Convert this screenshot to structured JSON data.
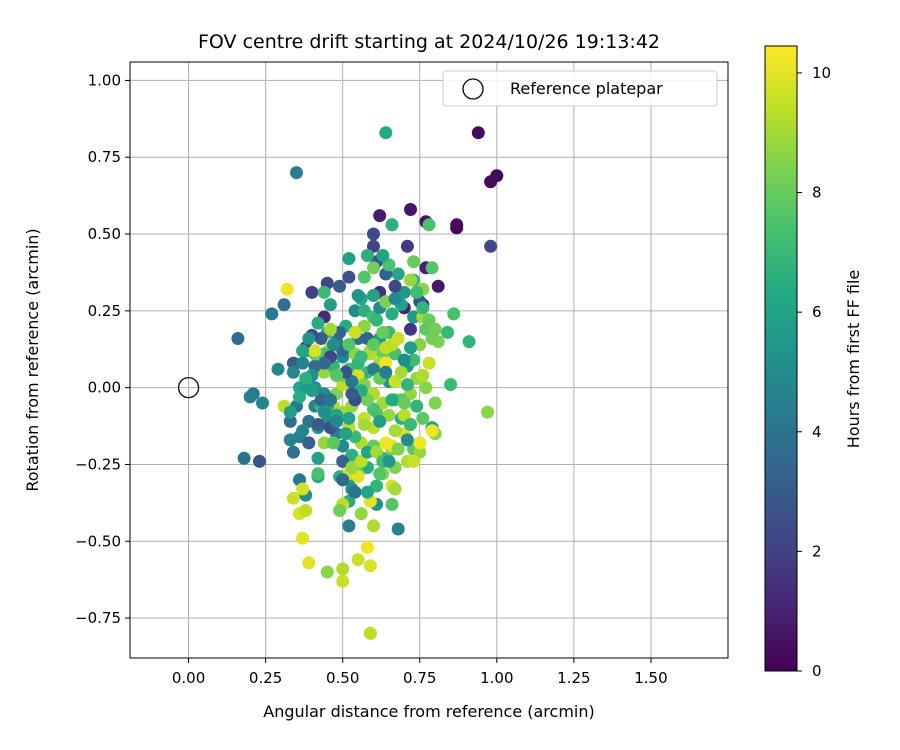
{
  "chart_data": {
    "type": "scatter",
    "title": "FOV centre drift starting at 2024/10/26 19:13:42",
    "xlabel": "Angular distance from reference (arcmin)",
    "ylabel": "Rotation from reference (arcmin)",
    "xlim": [
      -0.19,
      1.75
    ],
    "ylim": [
      -0.88,
      1.06
    ],
    "xticks": [
      0.0,
      0.25,
      0.5,
      0.75,
      1.0,
      1.25,
      1.5
    ],
    "xtick_labels": [
      "0.00",
      "0.25",
      "0.50",
      "0.75",
      "1.00",
      "1.25",
      "1.50"
    ],
    "yticks": [
      -0.75,
      -0.5,
      -0.25,
      0.0,
      0.25,
      0.5,
      0.75,
      1.0
    ],
    "ytick_labels": [
      "−0.75",
      "−0.50",
      "−0.25",
      "0.00",
      "0.25",
      "0.50",
      "0.75",
      "1.00"
    ],
    "grid": true,
    "colormap": "viridis",
    "colorbar": {
      "label": "Hours from first FF file",
      "range": [
        0,
        10.45
      ],
      "ticks": [
        0,
        2,
        4,
        6,
        8,
        10
      ],
      "tick_labels": [
        "0",
        "2",
        "4",
        "6",
        "8",
        "10"
      ]
    },
    "legend": {
      "placement": "top-right",
      "entries": [
        {
          "label": "Reference platepar",
          "marker": "open-circle"
        }
      ]
    },
    "reference_point": {
      "x": 0.0,
      "y": 0.0
    },
    "points": [
      [
        0.94,
        0.83,
        0.3
      ],
      [
        1.0,
        0.69,
        0.2
      ],
      [
        0.98,
        0.67,
        0.3
      ],
      [
        0.87,
        0.52,
        0.4
      ],
      [
        0.87,
        0.53,
        0.3
      ],
      [
        0.77,
        0.54,
        0.5
      ],
      [
        0.72,
        0.58,
        0.6
      ],
      [
        0.62,
        0.56,
        0.8
      ],
      [
        0.81,
        0.33,
        0.7
      ],
      [
        0.77,
        0.39,
        0.9
      ],
      [
        0.98,
        0.46,
        2.2
      ],
      [
        0.71,
        0.46,
        1.8
      ],
      [
        0.6,
        0.5,
        2.4
      ],
      [
        0.6,
        0.46,
        2.0
      ],
      [
        0.61,
        0.41,
        2.6
      ],
      [
        0.45,
        0.34,
        2.2
      ],
      [
        0.4,
        0.31,
        2.0
      ],
      [
        0.44,
        0.23,
        1.2
      ],
      [
        0.62,
        0.31,
        1.4
      ],
      [
        0.7,
        0.26,
        1.0
      ],
      [
        0.72,
        0.19,
        1.6
      ],
      [
        0.76,
        0.27,
        0.9
      ],
      [
        0.64,
        0.83,
        6.3
      ],
      [
        0.35,
        0.7,
        4.4
      ],
      [
        0.31,
        0.27,
        3.8
      ],
      [
        0.27,
        0.24,
        4.2
      ],
      [
        0.16,
        0.16,
        3.7
      ],
      [
        0.21,
        -0.02,
        4.3
      ],
      [
        0.2,
        -0.03,
        4.4
      ],
      [
        0.24,
        -0.05,
        4.6
      ],
      [
        0.18,
        -0.23,
        4.0
      ],
      [
        0.23,
        -0.24,
        2.8
      ],
      [
        0.66,
        0.53,
        6.6
      ],
      [
        0.78,
        0.53,
        7.4
      ],
      [
        0.52,
        0.42,
        5.9
      ],
      [
        0.58,
        0.43,
        6.6
      ],
      [
        0.6,
        0.39,
        8.2
      ],
      [
        0.68,
        0.37,
        6.2
      ],
      [
        0.73,
        0.35,
        7.0
      ],
      [
        0.76,
        0.32,
        8.6
      ],
      [
        0.73,
        0.41,
        8.0
      ],
      [
        0.79,
        0.39,
        7.6
      ],
      [
        0.86,
        0.24,
        7.4
      ],
      [
        0.84,
        0.18,
        7.0
      ],
      [
        0.91,
        0.15,
        6.8
      ],
      [
        0.81,
        0.15,
        8.4
      ],
      [
        0.32,
        0.32,
        10.2
      ],
      [
        0.29,
        0.06,
        4.8
      ],
      [
        0.34,
        0.08,
        3.0
      ],
      [
        0.38,
        0.12,
        5.2
      ],
      [
        0.36,
        0.0,
        6.2
      ],
      [
        0.38,
        0.0,
        5.6
      ],
      [
        0.35,
        -0.06,
        4.2
      ],
      [
        0.33,
        -0.11,
        3.8
      ],
      [
        0.36,
        -0.16,
        4.4
      ],
      [
        0.33,
        -0.17,
        4.6
      ],
      [
        0.34,
        -0.21,
        3.9
      ],
      [
        0.36,
        -0.3,
        4.2
      ],
      [
        0.38,
        -0.35,
        5.0
      ],
      [
        0.42,
        -0.23,
        6.0
      ],
      [
        0.42,
        -0.29,
        6.4
      ],
      [
        0.42,
        -0.13,
        5.5
      ],
      [
        0.41,
        -0.06,
        4.7
      ],
      [
        0.41,
        0.0,
        5.3
      ],
      [
        0.44,
        0.05,
        8.8
      ],
      [
        0.47,
        0.07,
        6.8
      ],
      [
        0.46,
        0.13,
        9.2
      ],
      [
        0.5,
        0.1,
        5.0
      ],
      [
        0.48,
        0.15,
        4.3
      ],
      [
        0.51,
        0.2,
        6.4
      ],
      [
        0.54,
        0.25,
        5.0
      ],
      [
        0.56,
        0.29,
        6.2
      ],
      [
        0.57,
        0.25,
        6.6
      ],
      [
        0.62,
        0.16,
        5.8
      ],
      [
        0.63,
        0.11,
        8.0
      ],
      [
        0.67,
        0.11,
        7.4
      ],
      [
        0.71,
        0.07,
        5.6
      ],
      [
        0.74,
        0.03,
        8.8
      ],
      [
        0.77,
        0.0,
        8.6
      ],
      [
        0.8,
        -0.05,
        8.4
      ],
      [
        0.85,
        0.01,
        7.0
      ],
      [
        0.79,
        -0.13,
        6.0
      ],
      [
        0.8,
        -0.15,
        8.6
      ],
      [
        0.76,
        -0.1,
        7.8
      ],
      [
        0.73,
        -0.2,
        7.8
      ],
      [
        0.71,
        -0.24,
        9.2
      ],
      [
        0.67,
        -0.26,
        8.4
      ],
      [
        0.63,
        -0.23,
        6.8
      ],
      [
        0.58,
        -0.26,
        6.4
      ],
      [
        0.55,
        -0.28,
        8.2
      ],
      [
        0.53,
        -0.22,
        6.6
      ],
      [
        0.5,
        -0.19,
        5.0
      ],
      [
        0.48,
        -0.15,
        4.4
      ],
      [
        0.45,
        -0.11,
        5.4
      ],
      [
        0.43,
        -0.06,
        6.8
      ],
      [
        0.4,
        -0.01,
        5.8
      ],
      [
        0.41,
        0.07,
        3.6
      ],
      [
        0.44,
        0.11,
        7.4
      ],
      [
        0.55,
        0.16,
        3.8
      ],
      [
        0.58,
        0.05,
        7.2
      ],
      [
        0.6,
        -0.02,
        9.2
      ],
      [
        0.61,
        -0.08,
        7.6
      ],
      [
        0.63,
        -0.05,
        9.0
      ],
      [
        0.65,
        0.02,
        5.4
      ],
      [
        0.67,
        -0.04,
        8.2
      ],
      [
        0.69,
        -0.1,
        6.4
      ],
      [
        0.7,
        -0.15,
        9.8
      ],
      [
        0.6,
        -0.13,
        9.4
      ],
      [
        0.57,
        -0.1,
        9.6
      ],
      [
        0.53,
        -0.06,
        8.8
      ],
      [
        0.5,
        -0.08,
        9.0
      ],
      [
        0.48,
        -0.02,
        8.4
      ],
      [
        0.5,
        0.01,
        9.4
      ],
      [
        0.52,
        0.06,
        7.2
      ],
      [
        0.54,
        0.11,
        8.6
      ],
      [
        0.56,
        0.04,
        6.6
      ],
      [
        0.59,
        0.12,
        8.8
      ],
      [
        0.62,
        0.08,
        9.0
      ],
      [
        0.64,
        0.13,
        9.4
      ],
      [
        0.65,
        0.18,
        7.0
      ],
      [
        0.66,
        0.24,
        6.4
      ],
      [
        0.69,
        0.27,
        6.0
      ],
      [
        0.73,
        0.23,
        5.6
      ],
      [
        0.75,
        0.28,
        2.8
      ],
      [
        0.76,
        0.23,
        9.0
      ],
      [
        0.77,
        0.19,
        7.8
      ],
      [
        0.79,
        0.16,
        8.2
      ],
      [
        0.75,
        0.14,
        8.6
      ],
      [
        0.73,
        0.09,
        7.2
      ],
      [
        0.78,
        0.08,
        9.6
      ],
      [
        0.76,
        0.04,
        9.2
      ],
      [
        0.72,
        -0.02,
        8.8
      ],
      [
        0.69,
        -0.04,
        7.6
      ],
      [
        0.7,
        -0.09,
        9.4
      ],
      [
        0.74,
        -0.06,
        6.8
      ],
      [
        0.67,
        -0.14,
        9.0
      ],
      [
        0.66,
        -0.2,
        8.2
      ],
      [
        0.63,
        -0.28,
        8.6
      ],
      [
        0.61,
        -0.32,
        6.8
      ],
      [
        0.61,
        -0.38,
        5.4
      ],
      [
        0.66,
        -0.32,
        9.8
      ],
      [
        0.66,
        -0.38,
        7.6
      ],
      [
        0.68,
        -0.46,
        4.6
      ],
      [
        0.59,
        -0.37,
        10.0
      ],
      [
        0.56,
        -0.41,
        8.8
      ],
      [
        0.52,
        -0.37,
        6.4
      ],
      [
        0.5,
        -0.38,
        9.4
      ],
      [
        0.49,
        -0.4,
        8.2
      ],
      [
        0.52,
        -0.45,
        4.4
      ],
      [
        0.6,
        -0.45,
        9.2
      ],
      [
        0.58,
        -0.52,
        10.2
      ],
      [
        0.55,
        -0.56,
        9.6
      ],
      [
        0.59,
        -0.58,
        9.8
      ],
      [
        0.5,
        -0.59,
        9.2
      ],
      [
        0.45,
        -0.6,
        8.6
      ],
      [
        0.5,
        -0.63,
        9.6
      ],
      [
        0.39,
        -0.57,
        10.0
      ],
      [
        0.37,
        -0.49,
        10.0
      ],
      [
        0.36,
        -0.41,
        9.8
      ],
      [
        0.38,
        -0.4,
        9.4
      ],
      [
        0.34,
        -0.36,
        9.6
      ],
      [
        0.37,
        -0.33,
        9.8
      ],
      [
        0.42,
        -0.28,
        7.4
      ],
      [
        0.49,
        -0.29,
        6.6
      ],
      [
        0.52,
        -0.3,
        6.2
      ],
      [
        0.52,
        -0.28,
        9.6
      ],
      [
        0.55,
        -0.29,
        10.0
      ],
      [
        0.53,
        -0.33,
        5.0
      ],
      [
        0.59,
        -0.8,
        9.4
      ],
      [
        0.79,
        -0.14,
        10.2
      ],
      [
        0.75,
        -0.21,
        8.8
      ],
      [
        0.73,
        -0.24,
        9.6
      ],
      [
        0.75,
        -0.18,
        10.2
      ],
      [
        0.66,
        -0.19,
        10.0
      ],
      [
        0.64,
        -0.18,
        10.2
      ],
      [
        0.6,
        -0.19,
        8.0
      ],
      [
        0.56,
        -0.18,
        9.2
      ],
      [
        0.54,
        -0.16,
        7.0
      ],
      [
        0.52,
        -0.13,
        9.4
      ],
      [
        0.52,
        -0.1,
        6.2
      ],
      [
        0.47,
        -0.06,
        9.2
      ],
      [
        0.45,
        -0.06,
        6.0
      ],
      [
        0.44,
        -0.02,
        5.0
      ],
      [
        0.5,
        0.04,
        8.0
      ],
      [
        0.55,
        0.04,
        9.8
      ],
      [
        0.57,
        0.01,
        8.4
      ],
      [
        0.6,
        0.06,
        4.6
      ],
      [
        0.64,
        0.08,
        10.2
      ],
      [
        0.67,
        0.02,
        9.6
      ],
      [
        0.66,
        -0.04,
        6.4
      ],
      [
        0.65,
        -0.09,
        8.8
      ],
      [
        0.62,
        -0.11,
        5.8
      ],
      [
        0.6,
        -0.07,
        7.4
      ],
      [
        0.58,
        -0.04,
        8.2
      ],
      [
        0.56,
        -0.01,
        6.4
      ],
      [
        0.53,
        0.02,
        4.2
      ],
      [
        0.5,
        0.12,
        3.6
      ],
      [
        0.47,
        0.14,
        5.0
      ],
      [
        0.45,
        0.18,
        6.6
      ],
      [
        0.46,
        0.27,
        5.8
      ],
      [
        0.44,
        0.31,
        7.0
      ],
      [
        0.49,
        0.33,
        3.0
      ],
      [
        0.52,
        0.36,
        2.6
      ],
      [
        0.55,
        0.3,
        5.4
      ],
      [
        0.57,
        0.36,
        7.6
      ],
      [
        0.6,
        0.3,
        6.0
      ],
      [
        0.6,
        0.23,
        7.2
      ],
      [
        0.57,
        0.2,
        8.6
      ],
      [
        0.54,
        0.18,
        9.6
      ],
      [
        0.52,
        0.14,
        7.6
      ],
      [
        0.49,
        0.18,
        3.4
      ],
      [
        0.46,
        0.19,
        9.0
      ],
      [
        0.43,
        0.16,
        3.0
      ],
      [
        0.4,
        0.17,
        2.4
      ],
      [
        0.38,
        0.13,
        2.0
      ],
      [
        0.37,
        0.08,
        4.6
      ],
      [
        0.4,
        0.04,
        5.2
      ],
      [
        0.43,
        -0.04,
        3.4
      ],
      [
        0.46,
        -0.04,
        4.0
      ],
      [
        0.48,
        -0.09,
        6.0
      ],
      [
        0.46,
        -0.13,
        2.6
      ],
      [
        0.44,
        -0.18,
        8.8
      ],
      [
        0.47,
        -0.18,
        7.8
      ],
      [
        0.5,
        -0.24,
        3.2
      ],
      [
        0.53,
        -0.26,
        8.8
      ],
      [
        0.56,
        -0.24,
        9.4
      ],
      [
        0.58,
        -0.21,
        6.2
      ],
      [
        0.61,
        -0.21,
        9.0
      ],
      [
        0.63,
        -0.24,
        7.2
      ],
      [
        0.65,
        -0.24,
        5.6
      ],
      [
        0.68,
        -0.2,
        8.4
      ],
      [
        0.71,
        -0.17,
        5.0
      ],
      [
        0.72,
        -0.12,
        7.0
      ],
      [
        0.7,
        -0.05,
        8.0
      ],
      [
        0.71,
        0.01,
        6.8
      ],
      [
        0.69,
        0.05,
        9.0
      ],
      [
        0.7,
        0.09,
        5.2
      ],
      [
        0.66,
        0.14,
        9.4
      ],
      [
        0.63,
        0.18,
        8.0
      ],
      [
        0.61,
        0.22,
        6.8
      ],
      [
        0.62,
        0.26,
        5.0
      ],
      [
        0.64,
        0.28,
        8.4
      ],
      [
        0.67,
        0.29,
        4.8
      ],
      [
        0.7,
        0.31,
        5.6
      ],
      [
        0.72,
        0.35,
        8.8
      ],
      [
        0.74,
        0.31,
        7.2
      ],
      [
        0.76,
        0.26,
        6.8
      ],
      [
        0.78,
        0.22,
        8.0
      ],
      [
        0.8,
        0.19,
        8.2
      ],
      [
        0.67,
        0.33,
        2.2
      ],
      [
        0.64,
        0.37,
        3.2
      ],
      [
        0.65,
        0.4,
        7.4
      ],
      [
        0.63,
        0.43,
        6.0
      ],
      [
        0.39,
        -0.11,
        4.2
      ],
      [
        0.37,
        -0.14,
        4.8
      ],
      [
        0.39,
        -0.18,
        3.2
      ],
      [
        0.42,
        -0.12,
        3.0
      ],
      [
        0.44,
        -0.08,
        5.2
      ],
      [
        0.48,
        -0.11,
        4.8
      ],
      [
        0.51,
        -0.15,
        6.0
      ],
      [
        0.5,
        -0.3,
        3.6
      ],
      [
        0.54,
        -0.34,
        4.0
      ],
      [
        0.58,
        -0.34,
        6.2
      ],
      [
        0.62,
        -0.28,
        7.6
      ],
      [
        0.67,
        -0.33,
        9.0
      ],
      [
        0.57,
        -0.12,
        9.0
      ],
      [
        0.54,
        -0.04,
        2.4
      ],
      [
        0.53,
        -0.02,
        3.0
      ],
      [
        0.51,
        0.05,
        2.6
      ],
      [
        0.55,
        0.08,
        6.8
      ],
      [
        0.59,
        0.11,
        9.2
      ],
      [
        0.62,
        0.03,
        8.0
      ],
      [
        0.64,
        0.05,
        4.4
      ],
      [
        0.56,
        0.1,
        7.0
      ],
      [
        0.58,
        0.16,
        3.4
      ],
      [
        0.6,
        0.14,
        7.8
      ],
      [
        0.48,
        0.04,
        7.6
      ],
      [
        0.46,
        0.1,
        2.2
      ],
      [
        0.44,
        0.08,
        3.6
      ],
      [
        0.41,
        0.11,
        7.8
      ],
      [
        0.39,
        0.16,
        5.4
      ],
      [
        0.42,
        0.21,
        6.4
      ],
      [
        0.38,
        0.03,
        6.6
      ],
      [
        0.31,
        -0.06,
        9.4
      ],
      [
        0.33,
        -0.08,
        5.8
      ],
      [
        0.36,
        -0.03,
        6.4
      ],
      [
        0.34,
        0.05,
        4.8
      ],
      [
        0.97,
        -0.08,
        8.6
      ],
      [
        0.41,
        0.12,
        9.8
      ],
      [
        0.37,
        0.12,
        6.2
      ],
      [
        0.68,
        0.16,
        9.6
      ],
      [
        0.72,
        0.13,
        5.8
      ]
    ]
  }
}
